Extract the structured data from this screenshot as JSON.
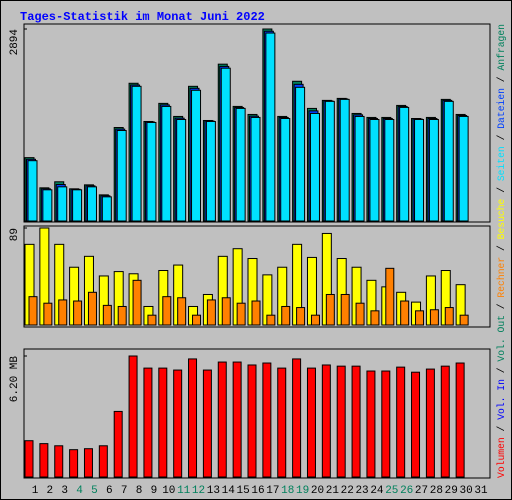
{
  "title": "Tages-Statistik im Monat Juni 2022",
  "legend_separator": " / ",
  "categories": [
    "1",
    "2",
    "3",
    "4",
    "5",
    "6",
    "7",
    "8",
    "9",
    "10",
    "11",
    "12",
    "13",
    "14",
    "15",
    "16",
    "17",
    "18",
    "19",
    "20",
    "21",
    "22",
    "23",
    "24",
    "25",
    "26",
    "27",
    "28",
    "29",
    "30",
    "31"
  ],
  "category_colors": [
    "#000000",
    "#000000",
    "#000000",
    "#00805c",
    "#00805c",
    "#000000",
    "#000000",
    "#000000",
    "#000000",
    "#000000",
    "#00805c",
    "#00805c",
    "#000000",
    "#000000",
    "#000000",
    "#000000",
    "#000000",
    "#00805c",
    "#00805c",
    "#000000",
    "#000000",
    "#000000",
    "#000000",
    "#000000",
    "#00805c",
    "#00805c",
    "#000000",
    "#000000",
    "#000000",
    "#000000",
    "#000000"
  ],
  "chart_data": [
    {
      "type": "bar",
      "ylim": [
        0,
        2894
      ],
      "yticks": [
        2894
      ],
      "series": [
        {
          "name": "Anfragen",
          "color": "#00805c",
          "values": [
            955,
            500,
            591,
            485,
            545,
            394,
            1409,
            2076,
            1500,
            1773,
            1576,
            2030,
            1515,
            2364,
            1727,
            1606,
            2894,
            1576,
            2106,
            1697,
            1818,
            1848,
            1621,
            1561,
            1561,
            1742,
            1545,
            1561,
            1833,
            1606,
            null
          ]
        },
        {
          "name": "Dateien",
          "color": "#0040ff",
          "values": [
            930,
            485,
            550,
            478,
            530,
            380,
            1385,
            2050,
            1492,
            1750,
            1550,
            2000,
            1508,
            2330,
            1710,
            1580,
            2860,
            1560,
            2060,
            1660,
            1810,
            1840,
            1600,
            1545,
            1545,
            1725,
            1538,
            1545,
            1818,
            1590,
            null
          ]
        },
        {
          "name": "Seiten",
          "color": "#00e0ff",
          "values": [
            909,
            470,
            515,
            470,
            515,
            364,
            1364,
            2030,
            1485,
            1727,
            1530,
            1970,
            1500,
            2303,
            1697,
            1561,
            2833,
            1545,
            2015,
            1621,
            1803,
            1833,
            1576,
            1530,
            1530,
            1712,
            1530,
            1530,
            1803,
            1576,
            null
          ]
        }
      ]
    },
    {
      "type": "bar",
      "ylim": [
        0,
        89
      ],
      "yticks": [
        89
      ],
      "series": [
        {
          "name": "Besuche",
          "color": "#ffff00",
          "values": [
            74,
            89,
            74,
            53,
            63,
            45,
            49,
            47,
            17,
            50,
            55,
            17,
            28,
            63,
            70,
            61,
            46,
            53,
            74,
            62,
            84,
            61,
            53,
            41,
            35,
            30,
            21,
            45,
            50,
            37,
            null
          ]
        },
        {
          "name": "Rechner",
          "color": "#ff8000",
          "values": [
            26,
            20,
            23,
            22,
            30,
            18,
            17,
            41,
            9,
            26,
            25,
            9,
            23,
            25,
            20,
            22,
            9,
            17,
            16,
            9,
            28,
            28,
            20,
            13,
            52,
            22,
            13,
            14,
            16,
            9,
            null
          ]
        }
      ]
    },
    {
      "type": "bar",
      "ylim": [
        0,
        6.2
      ],
      "yticks": [
        {
          "value": 6.2,
          "label": "6.20 MB"
        }
      ],
      "series": [
        {
          "name": "Volumen",
          "color": "#ff0000",
          "values": [
            1.86,
            1.71,
            1.6,
            1.4,
            1.45,
            1.6,
            3.36,
            6.2,
            5.58,
            5.58,
            5.48,
            6.05,
            5.48,
            5.89,
            5.89,
            5.74,
            5.84,
            5.58,
            6.05,
            5.58,
            5.74,
            5.68,
            5.68,
            5.43,
            5.43,
            5.63,
            5.37,
            5.53,
            5.68,
            5.84,
            null
          ]
        }
      ],
      "legend_extra": [
        {
          "name": "Vol. In",
          "color": "#0000ff"
        },
        {
          "name": "Vol. Out",
          "color": "#00805c"
        }
      ]
    }
  ]
}
